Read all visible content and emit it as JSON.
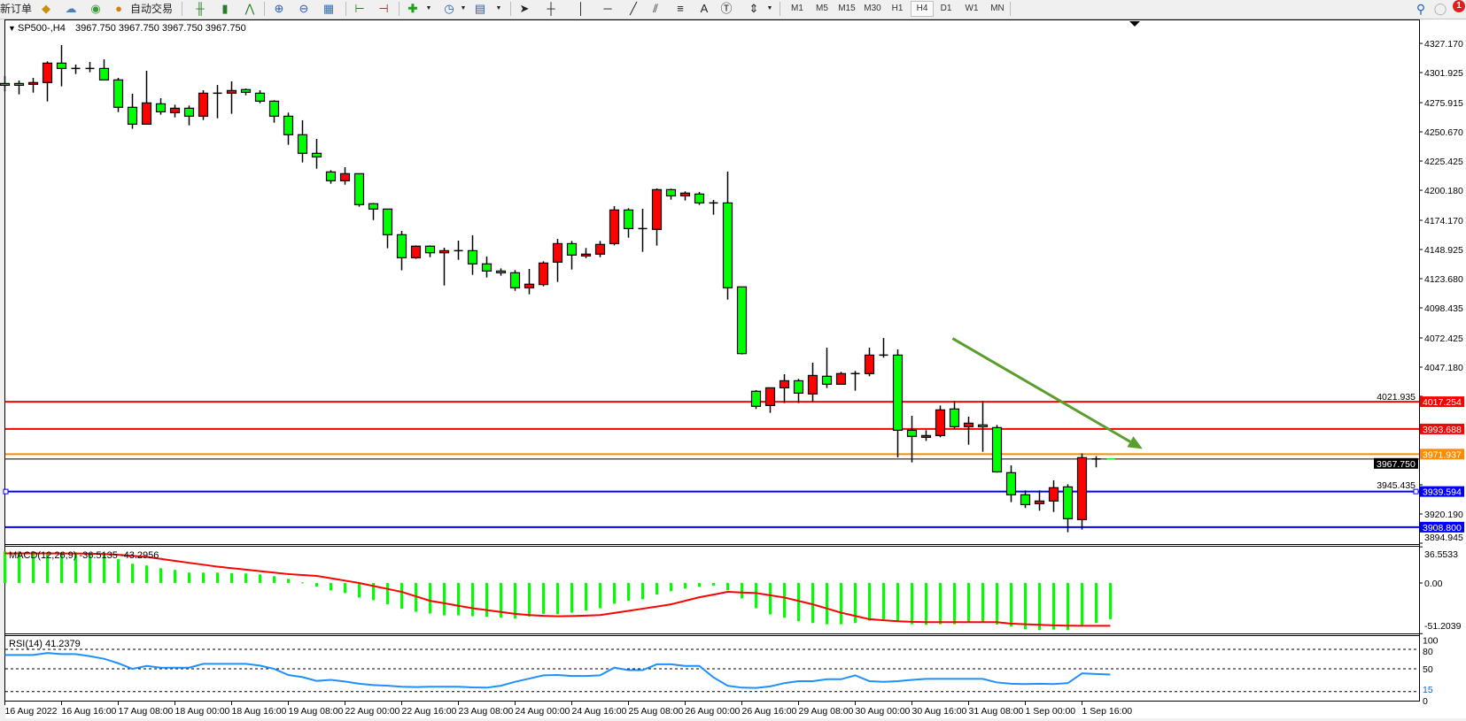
{
  "toolbar": {
    "new_order_label": "新订单",
    "auto_trading_label": "自动交易",
    "periods": [
      "M1",
      "M5",
      "M15",
      "M30",
      "H1",
      "H4",
      "D1",
      "W1",
      "MN"
    ],
    "active_period": "H4",
    "notification_count": "1",
    "text_tool_label": "A",
    "icons": [
      "market-watch-icon",
      "terminal-icon",
      "signals-icon",
      "auto-trading-icon",
      "bar-chart-icon",
      "candlestick-icon",
      "line-chart-icon",
      "zoom-in-icon",
      "zoom-out-icon",
      "tile-windows-icon",
      "chart-shift-icon",
      "auto-scroll-icon",
      "indicators-icon",
      "periods-icon",
      "templates-icon",
      "cursor-icon",
      "crosshair-icon",
      "vertical-line-icon",
      "horizontal-line-icon",
      "trendline-icon",
      "fibonacci-icon",
      "fibo-fan-icon",
      "text-icon",
      "text-label-icon",
      "arrows-icon",
      "search-icon",
      "notifications-icon"
    ]
  },
  "chart_header": {
    "symbol_period": "SP500-,H4",
    "ohlc_text": "3967.750 3967.750 3967.750 3967.750"
  },
  "chart_data": {
    "type": "candlestick",
    "symbol": "SP500-",
    "timeframe": "H4",
    "colors": {
      "bull_body": "#ff0000",
      "bear_body": "#00ff00",
      "outline": "#000000"
    },
    "ylim": [
      3894.2,
      4347.9
    ],
    "y_ticks": [
      "4327.170",
      "4301.925",
      "4275.915",
      "4250.670",
      "4225.425",
      "4200.180",
      "4174.170",
      "4148.925",
      "4123.680",
      "4098.435",
      "4072.425",
      "4047.180",
      "4021.935",
      "3945.435",
      "3920.190",
      "3894.945"
    ],
    "x_tick_labels": [
      {
        "bar": 0,
        "label": "16 Aug 2022"
      },
      {
        "bar": 4,
        "label": "16 Aug 16:00"
      },
      {
        "bar": 8,
        "label": "17 Aug 08:00"
      },
      {
        "bar": 12,
        "label": "18 Aug 00:00"
      },
      {
        "bar": 16,
        "label": "18 Aug 16:00"
      },
      {
        "bar": 20,
        "label": "19 Aug 08:00"
      },
      {
        "bar": 24,
        "label": "22 Aug 00:00"
      },
      {
        "bar": 28,
        "label": "22 Aug 16:00"
      },
      {
        "bar": 32,
        "label": "23 Aug 08:00"
      },
      {
        "bar": 36,
        "label": "24 Aug 00:00"
      },
      {
        "bar": 40,
        "label": "24 Aug 16:00"
      },
      {
        "bar": 44,
        "label": "25 Aug 08:00"
      },
      {
        "bar": 48,
        "label": "26 Aug 00:00"
      },
      {
        "bar": 52,
        "label": "26 Aug 16:00"
      },
      {
        "bar": 56,
        "label": "29 Aug 08:00"
      },
      {
        "bar": 60,
        "label": "30 Aug 00:00"
      },
      {
        "bar": 64,
        "label": "30 Aug 16:00"
      },
      {
        "bar": 68,
        "label": "31 Aug 08:00"
      },
      {
        "bar": 72,
        "label": "1 Sep 00:00"
      },
      {
        "bar": 76,
        "label": "1 Sep 16:00"
      }
    ],
    "candles_ohlc": [
      [
        4292.5,
        4298.9,
        4285.6,
        4292.0
      ],
      [
        4292.5,
        4295.1,
        4283.1,
        4291.0
      ],
      [
        4291.8,
        4297.4,
        4284.6,
        4293.3
      ],
      [
        4293.3,
        4311.6,
        4277.0,
        4310.1
      ],
      [
        4310.1,
        4325.7,
        4290.0,
        4305.5
      ],
      [
        4305.5,
        4308.9,
        4300.7,
        4305.5
      ],
      [
        4305.5,
        4311.1,
        4302.2,
        4305.5
      ],
      [
        4305.5,
        4313.4,
        4295.6,
        4295.6
      ],
      [
        4295.6,
        4297.4,
        4267.8,
        4271.9
      ],
      [
        4271.9,
        4283.6,
        4253.3,
        4257.3
      ],
      [
        4257.3,
        4303.5,
        4257.3,
        4275.7
      ],
      [
        4274.9,
        4279.8,
        4265.5,
        4268.0
      ],
      [
        4267.3,
        4274.2,
        4263.2,
        4271.1
      ],
      [
        4271.1,
        4273.4,
        4256.3,
        4264.2
      ],
      [
        4264.2,
        4286.7,
        4260.9,
        4284.1
      ],
      [
        4284.1,
        4291.2,
        4262.4,
        4284.1
      ],
      [
        4284.1,
        4294.3,
        4266.3,
        4286.4
      ],
      [
        4287.2,
        4288.2,
        4282.3,
        4284.9
      ],
      [
        4284.1,
        4286.7,
        4275.4,
        4277.2
      ],
      [
        4277.2,
        4278.0,
        4258.6,
        4264.2
      ],
      [
        4264.2,
        4267.3,
        4239.5,
        4248.2
      ],
      [
        4248.2,
        4260.7,
        4224.2,
        4232.1
      ],
      [
        4232.1,
        4244.6,
        4218.8,
        4229.0
      ],
      [
        4216.0,
        4217.5,
        4205.8,
        4208.4
      ],
      [
        4208.4,
        4220.1,
        4205.0,
        4214.5
      ],
      [
        4214.5,
        4214.5,
        4185.9,
        4187.7
      ],
      [
        4188.5,
        4189.2,
        4174.4,
        4183.9
      ],
      [
        4183.9,
        4183.9,
        4150.0,
        4161.7
      ],
      [
        4161.7,
        4165.0,
        4130.9,
        4141.8
      ],
      [
        4141.8,
        4152.5,
        4140.8,
        4151.8
      ],
      [
        4151.8,
        4152.5,
        4142.3,
        4146.1
      ],
      [
        4146.1,
        4150.5,
        4117.8,
        4147.9
      ],
      [
        4147.9,
        4156.6,
        4140.0,
        4147.9
      ],
      [
        4147.9,
        4161.2,
        4127.0,
        4136.5
      ],
      [
        4136.5,
        4142.8,
        4124.7,
        4130.3
      ],
      [
        4130.3,
        4132.6,
        4126.3,
        4128.8
      ],
      [
        4128.8,
        4131.1,
        4113.2,
        4115.8
      ],
      [
        4115.8,
        4132.1,
        4110.2,
        4118.9
      ],
      [
        4118.6,
        4138.7,
        4117.1,
        4137.2
      ],
      [
        4138.0,
        4158.1,
        4120.9,
        4154.0
      ],
      [
        4154.0,
        4156.3,
        4131.6,
        4144.1
      ],
      [
        4143.3,
        4150.2,
        4141.5,
        4144.9
      ],
      [
        4144.9,
        4156.3,
        4142.3,
        4153.3
      ],
      [
        4154.0,
        4186.4,
        4152.5,
        4183.1
      ],
      [
        4183.1,
        4184.6,
        4159.1,
        4167.0
      ],
      [
        4167.0,
        4184.1,
        4146.9,
        4167.0
      ],
      [
        4166.3,
        4201.7,
        4152.3,
        4200.7
      ],
      [
        4200.7,
        4201.5,
        4192.0,
        4195.3
      ],
      [
        4195.3,
        4199.2,
        4191.3,
        4197.7
      ],
      [
        4196.9,
        4198.7,
        4187.5,
        4189.2
      ],
      [
        4189.2,
        4191.8,
        4179.0,
        4189.2
      ],
      [
        4189.2,
        4216.3,
        4105.6,
        4115.8
      ],
      [
        4116.6,
        4116.6,
        4058.2,
        4058.9
      ],
      [
        4026.3,
        4027.3,
        4011.0,
        4013.3
      ],
      [
        4014.0,
        4029.3,
        4007.7,
        4029.3
      ],
      [
        4029.3,
        4041.1,
        4016.1,
        4035.4
      ],
      [
        4035.4,
        4037.0,
        4016.1,
        4024.7
      ],
      [
        4024.0,
        4051.0,
        4017.1,
        4040.0
      ],
      [
        4039.3,
        4064.0,
        4029.1,
        4032.4
      ],
      [
        4032.4,
        4043.1,
        4032.4,
        4041.6
      ],
      [
        4041.6,
        4043.9,
        4026.8,
        4041.6
      ],
      [
        4041.6,
        4064.0,
        4039.3,
        4057.6
      ],
      [
        4057.6,
        4072.4,
        4055.4,
        4057.6
      ],
      [
        4057.6,
        4062.5,
        3969.1,
        3992.6
      ],
      [
        3992.6,
        4005.1,
        3964.8,
        3987.3
      ],
      [
        3986.5,
        3992.6,
        3983.4,
        3988.0
      ],
      [
        3988.0,
        4014.0,
        3986.5,
        4010.2
      ],
      [
        4011.0,
        4017.9,
        3993.4,
        3995.7
      ],
      [
        3995.7,
        4004.4,
        3980.1,
        3998.7
      ],
      [
        3997.2,
        4017.9,
        3974.0,
        3995.7
      ],
      [
        3994.9,
        3997.2,
        3955.9,
        3956.6
      ],
      [
        3955.9,
        3962.2,
        3930.4,
        3936.8
      ],
      [
        3936.8,
        3940.6,
        3925.3,
        3928.3
      ],
      [
        3929.1,
        3940.6,
        3923.0,
        3931.4
      ],
      [
        3931.4,
        3949.3,
        3921.9,
        3942.9
      ],
      [
        3943.6,
        3945.9,
        3904.4,
        3916.1
      ],
      [
        3915.3,
        3972.5,
        3906.7,
        3968.9
      ],
      [
        3967.75,
        3970.2,
        3960.5,
        3967.75
      ],
      [
        3967.75,
        3967.75,
        3967.75,
        3967.75
      ]
    ],
    "current_price": {
      "value": 3967.75,
      "label": "3967.750",
      "color": "#000000"
    },
    "horizontal_lines": [
      {
        "value": 4017.254,
        "label": "4017.254",
        "color": "#ff0000"
      },
      {
        "value": 3993.688,
        "label": "3993.688",
        "color": "#ff0000"
      },
      {
        "value": 3971.937,
        "label": "3971.937",
        "color": "#ff8c00"
      },
      {
        "value": 3939.594,
        "label": "3939.594",
        "color": "#0000ff",
        "selected": true
      },
      {
        "value": 3908.8,
        "label": "3908.800",
        "color": "#0000ff"
      }
    ],
    "trendline": {
      "from": {
        "bar": 66.9,
        "price": 4072.0
      },
      "to": {
        "bar": 80.3,
        "price": 3976.5
      },
      "color": "#5a9e2e",
      "arrow": true
    },
    "macd": {
      "label": "MACD(12,26,9) -36.5135 -43.2956",
      "ylim": [
        -51.2039,
        36.5533
      ],
      "ticks": [
        "36.5533",
        "0.00",
        "-51.2039"
      ],
      "tick_values": [
        36.5533,
        0,
        -51.2039
      ],
      "histogram_color": "#00ff00",
      "signal_color": "#ff0000",
      "histogram": [
        32,
        32,
        32,
        31,
        31,
        31,
        30,
        29,
        24,
        19.5,
        17.7,
        15,
        13.2,
        10.5,
        10.5,
        10.5,
        9.9,
        9.6,
        8.7,
        6.9,
        4.2,
        0.6,
        -3.6,
        -7.5,
        -10.2,
        -14.7,
        -17.4,
        -21.6,
        -26.1,
        -29.1,
        -30.9,
        -32.7,
        -32.7,
        -33.6,
        -34.2,
        -35.1,
        -36,
        -33.9,
        -31.2,
        -31.5,
        -30,
        -27.9,
        -25.5,
        -21,
        -18,
        -16.5,
        -11.7,
        -8.4,
        -5.7,
        -3.9,
        -2.7,
        -7.2,
        -15.6,
        -25.5,
        -31.8,
        -35.1,
        -38.7,
        -40.5,
        -41.7,
        -41.7,
        -40.5,
        -38.1,
        -36.6,
        -39,
        -41.7,
        -42.3,
        -41.7,
        -41.7,
        -39,
        -39.6,
        -42,
        -44.1,
        -46.8,
        -47.7,
        -47.1,
        -47.7,
        -42.6,
        -40.5,
        -36.5135
      ],
      "signal": [
        30,
        30,
        30,
        30,
        29.9,
        29.8,
        29.6,
        29.3,
        28.5,
        27.5,
        26.4,
        24.4,
        22.4,
        20.4,
        18.5,
        16.5,
        15,
        13.5,
        12,
        10.5,
        9,
        8,
        7.2,
        4.8,
        2.4,
        0,
        -3,
        -6,
        -9,
        -13.5,
        -18,
        -20.5,
        -23,
        -25.5,
        -27.4,
        -29.3,
        -31.2,
        -32.4,
        -33.2,
        -33.6,
        -33.4,
        -33,
        -32.4,
        -30.3,
        -28.2,
        -26,
        -23.8,
        -21.6,
        -18,
        -14.4,
        -11.7,
        -9,
        -9.6,
        -10.2,
        -12.4,
        -14.7,
        -18.1,
        -21.6,
        -25.8,
        -30,
        -33.3,
        -36.6,
        -37.7,
        -38.7,
        -39.2,
        -39.6,
        -39.6,
        -39.6,
        -39.6,
        -39.6,
        -39.6,
        -41.1,
        -41.7,
        -42.3,
        -42.8,
        -43.2,
        -43.3,
        -43.3,
        -43.2956
      ]
    },
    "rsi": {
      "label": "RSI(14) 41.2379",
      "ylim": [
        0,
        100
      ],
      "levels": [
        80,
        50,
        15
      ],
      "ticks": [
        "100",
        "80",
        "50",
        "15",
        "0"
      ],
      "tick_values": [
        100,
        80,
        50,
        15,
        0
      ],
      "color": "#1e90ff",
      "values": [
        71.4,
        71.4,
        71.4,
        74.5,
        72.7,
        72.7,
        69.5,
        65.5,
        58.6,
        50,
        54.5,
        51.8,
        51.8,
        51.8,
        57.7,
        57.7,
        57.7,
        57.7,
        55,
        50,
        40.5,
        37.3,
        31.4,
        33,
        30.5,
        27,
        25,
        24,
        22.5,
        22,
        22.5,
        22.5,
        22.5,
        21.5,
        21,
        24,
        30,
        35,
        40,
        40.5,
        39,
        39,
        40,
        51.8,
        48,
        48,
        57,
        57,
        54.5,
        54.5,
        36.8,
        24,
        21,
        20.5,
        23,
        28,
        31,
        31,
        34,
        34,
        40,
        31,
        30,
        31,
        33,
        34.5,
        34.5,
        34.5,
        34.5,
        34.5,
        29,
        27,
        26.5,
        27,
        26.5,
        28,
        43,
        42,
        41.2379
      ]
    }
  }
}
